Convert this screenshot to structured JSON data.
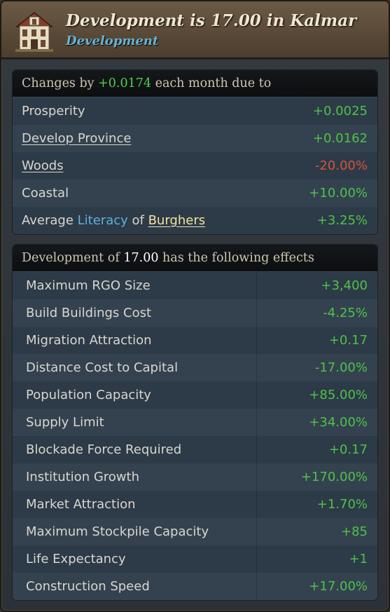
{
  "header": {
    "title": "Development is 17.00 in Kalmar",
    "subtitle": "Development",
    "icon": "building-icon"
  },
  "changes": {
    "head_prefix": "Changes by ",
    "head_value": "+0.0174",
    "head_suffix": " each month due to",
    "rows": [
      {
        "label": "Prosperity",
        "value": "+0.0025"
      },
      {
        "label": "Develop Province",
        "value": "+0.0162"
      },
      {
        "label": "Woods",
        "value": "-20.00%"
      },
      {
        "label": "Coastal",
        "value": "+10.00%"
      },
      {
        "label_prefix": "Average ",
        "label_term": "Literacy",
        "label_mid": " of ",
        "label_link": "Burghers",
        "value": "+3.25%"
      }
    ]
  },
  "effects": {
    "head_prefix": "Development of ",
    "head_value": "17.00",
    "head_suffix": " has the following effects",
    "rows": [
      {
        "label": "Maximum RGO Size",
        "value": "+3,400"
      },
      {
        "label": "Build Buildings Cost",
        "value": "-4.25%"
      },
      {
        "label": "Migration Attraction",
        "value": "+0.17"
      },
      {
        "label": "Distance Cost to Capital",
        "value": "-17.00%"
      },
      {
        "label": "Population Capacity",
        "value": "+85.00%"
      },
      {
        "label": "Supply Limit",
        "value": "+34.00%"
      },
      {
        "label": "Blockade Force Required",
        "value": "+0.17"
      },
      {
        "label": "Institution Growth",
        "value": "+170.00%"
      },
      {
        "label": "Market Attraction",
        "value": "+1.70%"
      },
      {
        "label": "Maximum Stockpile Capacity",
        "value": "+85"
      },
      {
        "label": "Life Expectancy",
        "value": "+1"
      },
      {
        "label": "Construction Speed",
        "value": "+17.00%"
      }
    ]
  },
  "colors": {
    "positive": "#4ec24a",
    "negative": "#d4543f",
    "keyword": "#5fb2da",
    "link": "#f3e3a0"
  }
}
